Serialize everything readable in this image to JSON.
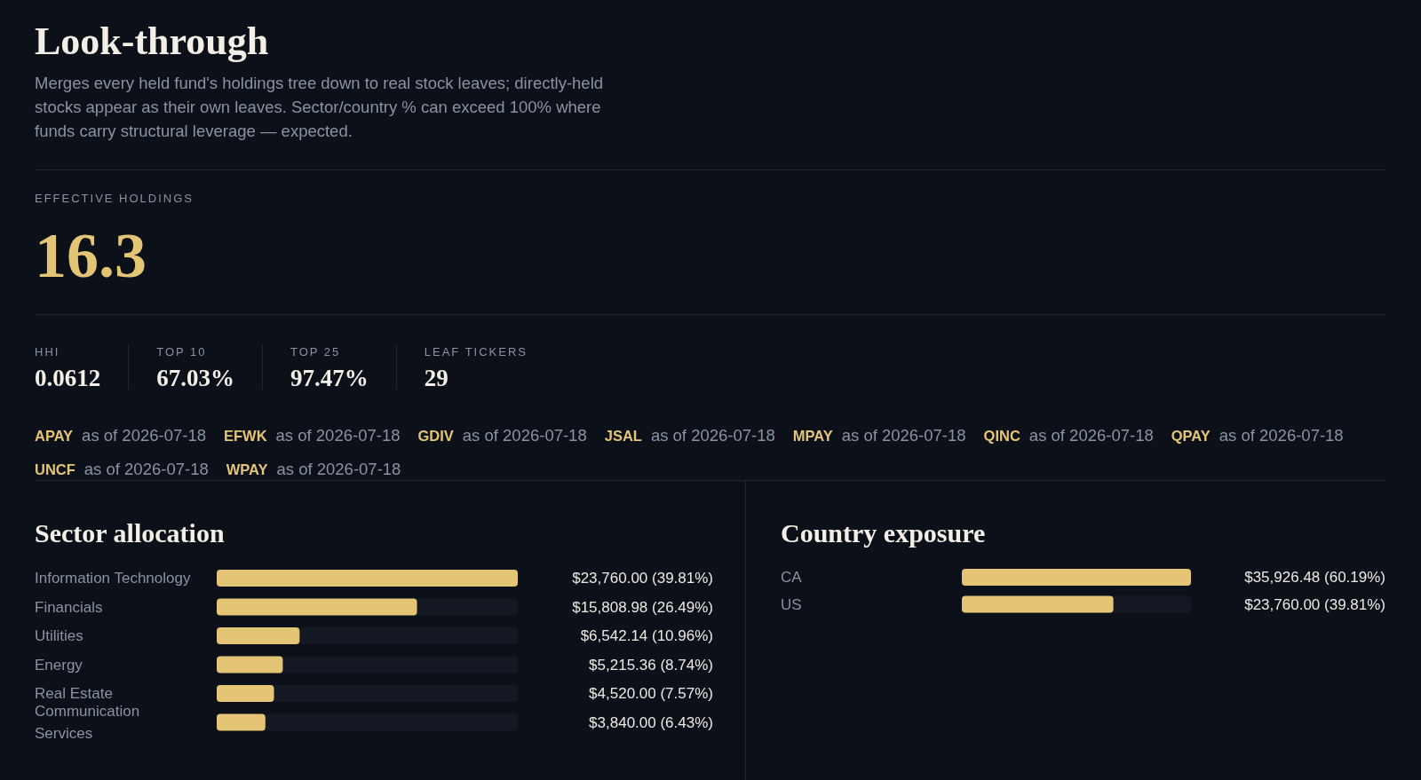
{
  "chart_data": [
    {
      "type": "other",
      "title": "Look-through",
      "subtitle": "Merges every held fund's holdings tree down to real stock leaves; directly-held stocks appear as their own leaves. Sector/country % can exceed 100% where funds carry structural leverage — expected.",
      "annotations": [
        "EFFECTIVE HOLDINGS",
        "16.3",
        "HHI",
        "0.0612",
        "TOP 10",
        "67.03%",
        "TOP 25",
        "97.47%",
        "LEAF TICKERS",
        "29",
        "APAY as of 2026-07-18",
        "EFWK as of 2026-07-18",
        "GDIV as of 2026-07-18",
        "JSAL as of 2026-07-18",
        "MPAY as of 2026-07-18",
        "QINC as of 2026-07-18",
        "QPAY as of 2026-07-18",
        "UNCF as of 2026-07-18",
        "WPAY as of 2026-07-18"
      ]
    },
    {
      "type": "bar",
      "orientation": "horizontal",
      "title": "Sector allocation",
      "categories": [
        "Information Technology",
        "Financials",
        "Utilities",
        "Energy",
        "Real Estate",
        "Communication Services"
      ],
      "values": [
        23760.0,
        15808.98,
        6542.14,
        5215.36,
        4520.0,
        3840.0
      ],
      "color": "#e4c576",
      "value_labels": [
        "$23,760.00 (39.81%)",
        "$15,808.98 (26.49%)",
        "$6,542.14 (10.96%)",
        "$5,215.36 (8.74%)",
        "$4,520.00 (7.57%)",
        "$3,840.00 (6.43%)"
      ]
    },
    {
      "type": "bar",
      "orientation": "horizontal",
      "title": "Country exposure",
      "categories": [
        "CA",
        "US"
      ],
      "values": [
        35926.48,
        23760.0
      ],
      "color": "#e4c576",
      "value_labels": [
        "$35,926.48 (60.19%)",
        "$23,760.00 (39.81%)"
      ]
    }
  ]
}
